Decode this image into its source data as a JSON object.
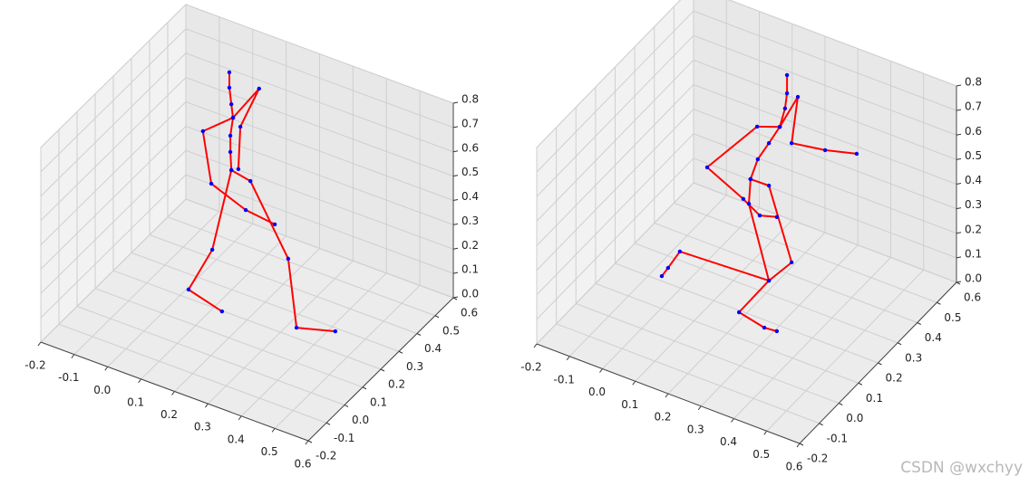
{
  "chart_data": [
    {
      "type": "line3d",
      "color": "red",
      "marker_color": "blue",
      "xlim": [
        -0.2,
        0.6
      ],
      "ylim": [
        -0.2,
        0.6
      ],
      "zlim": [
        0,
        0.8
      ],
      "xticks": [
        -0.2,
        -0.1,
        {
          "value": 0,
          "label": "0.0"
        },
        0.1,
        0.2,
        0.3,
        0.4,
        0.5,
        0.6
      ],
      "yticks": [
        -0.2,
        -0.1,
        {
          "value": 0,
          "label": "0.0"
        },
        0.1,
        0.2,
        0.3,
        0.4,
        0.5,
        0.6
      ],
      "zticks": [
        {
          "value": 0,
          "label": "0.0"
        },
        0.1,
        0.2,
        0.3,
        0.4,
        0.5,
        0.6,
        0.7,
        0.8
      ],
      "series": [
        {
          "x": [
            0.153,
            0.15,
            0.15,
            0.158,
            0.153,
            0.147,
            0.147
          ],
          "y": [
            0.2,
            0.2,
            0.2,
            0.2,
            0.2,
            0.2,
            0.2
          ],
          "z": [
            0.592,
            0.665,
            0.732,
            0.81,
            0.863,
            0.928,
            0.991
          ]
        },
        {
          "x": [
            0.158,
            0.236,
            0.18,
            0.174
          ],
          "y": [
            0.2,
            0.2,
            0.2,
            0.2
          ],
          "z": [
            0.81,
            0.969,
            0.784,
            0.607
          ]
        },
        {
          "x": [
            0.158,
            0.068,
            0.093,
            0.196,
            0.283
          ],
          "y": [
            0.2,
            0.2,
            0.2,
            0.2,
            0.2
          ],
          "z": [
            0.81,
            0.709,
            0.506,
            0.45,
            0.435
          ]
        },
        {
          "x": [
            0.153,
            0.096,
            0.025,
            0.125
          ],
          "y": [
            0.2,
            0.2,
            0.2,
            0.2
          ],
          "z": [
            0.592,
            0.236,
            0.036,
            -0.003
          ]
        },
        {
          "x": [
            0.153,
            0.21,
            0.323,
            0.348,
            0.464
          ],
          "y": [
            0.2,
            0.2,
            0.2,
            0.2,
            0.2
          ],
          "z": [
            0.592,
            0.576,
            0.314,
            0.043,
            0.087
          ]
        }
      ]
    },
    {
      "type": "line3d",
      "color": "red",
      "marker_color": "blue",
      "xlim": [
        -0.2,
        0.6
      ],
      "ylim": [
        -0.2,
        0.6
      ],
      "zlim": [
        0,
        0.8
      ],
      "xticks": [
        -0.2,
        -0.1,
        {
          "value": 0,
          "label": "0.0"
        },
        0.1,
        0.2,
        0.3,
        0.4,
        0.5,
        0.6
      ],
      "yticks": [
        -0.2,
        -0.1,
        {
          "value": 0,
          "label": "0.0"
        },
        0.1,
        0.2,
        0.3,
        0.4,
        0.5,
        0.6
      ],
      "zticks": [
        {
          "value": 0,
          "label": "0.0"
        },
        0.1,
        0.2,
        0.3,
        0.4,
        0.5,
        0.6,
        0.7,
        0.8
      ],
      "series": [
        {
          "x": [
            0.212,
            0.234,
            0.268,
            0.301,
            0.317,
            0.323,
            0.323
          ],
          "y": [
            0.2,
            0.2,
            0.2,
            0.2,
            0.2,
            0.2,
            0.2
          ],
          "z": [
            0.552,
            0.644,
            0.727,
            0.81,
            0.893,
            0.958,
            1.032
          ]
        },
        {
          "x": [
            0.301,
            0.232,
            0.08,
            0.19,
            0.24,
            0.292
          ],
          "y": [
            0.2,
            0.2,
            0.2,
            0.2,
            0.2,
            0.2
          ],
          "z": [
            0.81,
            0.776,
            0.533,
            0.46,
            0.418,
            0.438
          ]
        },
        {
          "x": [
            0.301,
            0.356,
            0.337,
            0.439,
            0.535
          ],
          "y": [
            0.2,
            0.2,
            0.2,
            0.2,
            0.2
          ],
          "z": [
            0.81,
            0.96,
            0.762,
            0.785,
            0.819
          ]
        },
        {
          "x": [
            0.212,
            0.207,
            0.268,
            0.177,
            0.254,
            0.292
          ],
          "y": [
            0.2,
            0.2,
            0.2,
            0.2,
            0.2,
            0.2
          ],
          "z": [
            0.552,
            0.449,
            0.167,
            -0.008,
            -0.032,
            -0.027
          ]
        },
        {
          "x": [
            0.212,
            0.268,
            0.337,
            0.268,
            -0.003,
            -0.039,
            -0.058
          ],
          "y": [
            0.2,
            0.2,
            0.2,
            0.2,
            0.2,
            0.2,
            0.2
          ],
          "z": [
            0.552,
            0.554,
            0.276,
            0.167,
            0.148,
            0.063,
            0.02
          ]
        }
      ]
    }
  ],
  "watermark": "CSDN @wxchyy"
}
